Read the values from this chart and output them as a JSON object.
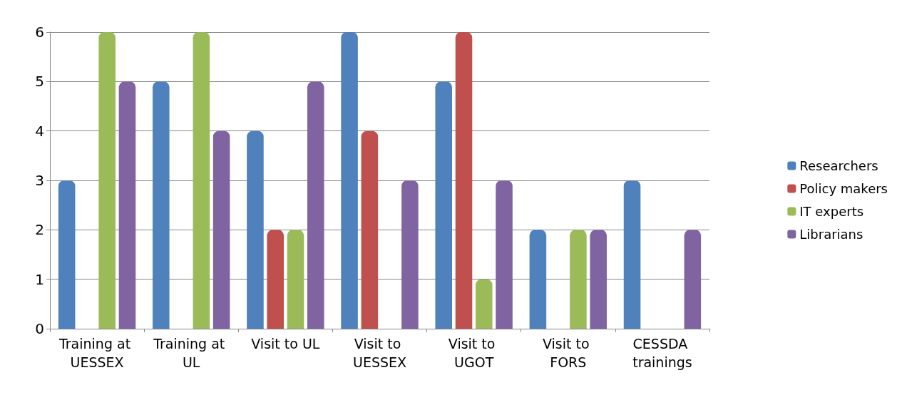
{
  "chart_data": {
    "type": "bar",
    "categories": [
      "Training at UESSEX",
      "Training at UL",
      "Visit to UL",
      "Visit to UESSEX",
      "Visit to UGOT",
      "Visit to FORS",
      "CESSDA trainings"
    ],
    "series": [
      {
        "name": "Researchers",
        "color": "#4f81bd",
        "values": [
          3,
          5,
          4,
          6,
          5,
          2,
          3
        ]
      },
      {
        "name": "Policy makers",
        "color": "#c0504d",
        "values": [
          0,
          0,
          2,
          4,
          6,
          0,
          0
        ]
      },
      {
        "name": "IT experts",
        "color": "#9bbb59",
        "values": [
          6,
          6,
          2,
          0,
          1,
          2,
          0
        ]
      },
      {
        "name": "Librarians",
        "color": "#8064a2",
        "values": [
          5,
          4,
          5,
          3,
          3,
          2,
          2
        ]
      }
    ],
    "ylim": [
      0,
      6
    ],
    "yticks": [
      0,
      1,
      2,
      3,
      4,
      5,
      6
    ],
    "grid": "y",
    "legend": "right"
  }
}
